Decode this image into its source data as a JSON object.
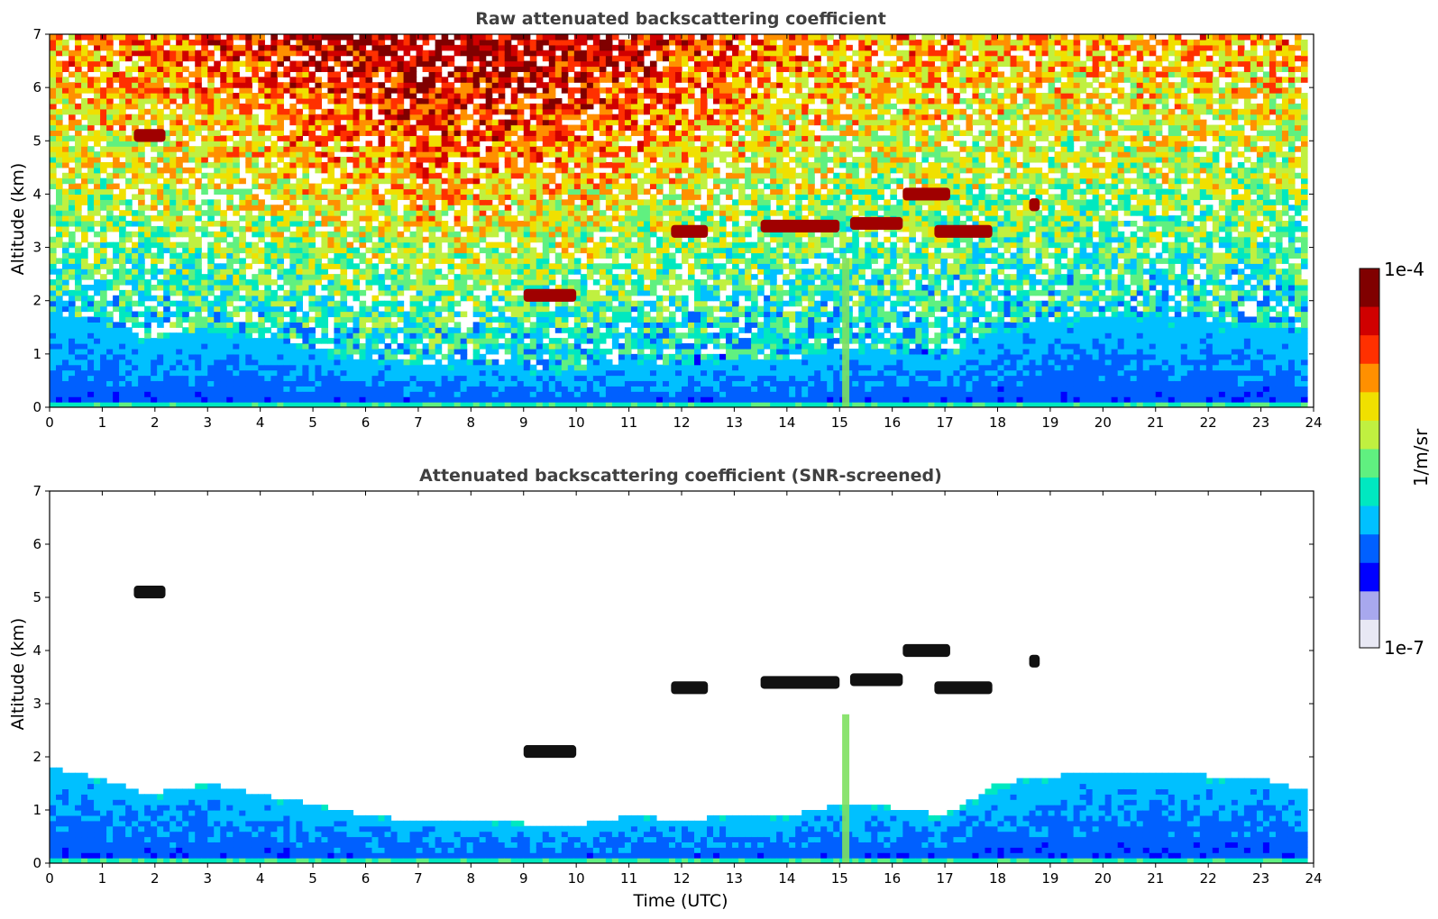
{
  "chart_data": [
    {
      "type": "heatmap",
      "title": "Raw attenuated backscattering coefficient",
      "xlabel": "",
      "ylabel": "Altitude (km)",
      "xlim": [
        0,
        24
      ],
      "ylim": [
        0,
        7
      ],
      "xticks": [
        "0",
        "1",
        "2",
        "3",
        "4",
        "5",
        "6",
        "7",
        "8",
        "9",
        "10",
        "11",
        "12",
        "13",
        "14",
        "15",
        "16",
        "17",
        "18",
        "19",
        "20",
        "21",
        "22",
        "23",
        "24"
      ],
      "yticks": [
        "0",
        "1",
        "2",
        "3",
        "4",
        "5",
        "6",
        "7"
      ],
      "background": "noise",
      "cloud_layers": [
        {
          "t0": 1.6,
          "t1": 2.2,
          "alt": 5.1
        },
        {
          "t0": 9.0,
          "t1": 10.0,
          "alt": 2.1
        },
        {
          "t0": 11.8,
          "t1": 12.5,
          "alt": 3.3
        },
        {
          "t0": 13.5,
          "t1": 15.0,
          "alt": 3.4
        },
        {
          "t0": 15.2,
          "t1": 16.2,
          "alt": 3.45
        },
        {
          "t0": 16.2,
          "t1": 17.1,
          "alt": 4.0
        },
        {
          "t0": 16.8,
          "t1": 17.9,
          "alt": 3.3
        },
        {
          "t0": 18.6,
          "t1": 18.8,
          "alt": 3.8
        }
      ],
      "boundary_layer_top_km": [
        [
          0,
          1.8
        ],
        [
          1,
          1.6
        ],
        [
          1.8,
          1.3
        ],
        [
          3,
          1.5
        ],
        [
          4,
          1.3
        ],
        [
          5,
          1.1
        ],
        [
          6,
          0.9
        ],
        [
          7,
          0.8
        ],
        [
          8,
          0.8
        ],
        [
          9,
          0.75
        ],
        [
          10,
          0.7
        ],
        [
          11,
          0.9
        ],
        [
          12,
          0.8
        ],
        [
          13,
          0.9
        ],
        [
          14,
          0.9
        ],
        [
          15,
          1.1
        ],
        [
          16,
          1.05
        ],
        [
          17,
          0.9
        ],
        [
          18,
          1.5
        ],
        [
          20,
          1.75
        ],
        [
          21,
          1.7
        ],
        [
          22,
          1.65
        ],
        [
          23,
          1.6
        ],
        [
          24,
          1.3
        ]
      ],
      "rain_column": {
        "t": 15.1,
        "top_km": 2.8
      }
    },
    {
      "type": "heatmap",
      "title": "Attenuated backscattering coefficient (SNR-screened)",
      "xlabel": "Time (UTC)",
      "ylabel": "Altitude (km)",
      "xlim": [
        0,
        24
      ],
      "ylim": [
        0,
        7
      ],
      "xticks": [
        "0",
        "1",
        "2",
        "3",
        "4",
        "5",
        "6",
        "7",
        "8",
        "9",
        "10",
        "11",
        "12",
        "13",
        "14",
        "15",
        "16",
        "17",
        "18",
        "19",
        "20",
        "21",
        "22",
        "23",
        "24"
      ],
      "yticks": [
        "0",
        "1",
        "2",
        "3",
        "4",
        "5",
        "6",
        "7"
      ],
      "background": "screened",
      "cloud_layers": [
        {
          "t0": 1.6,
          "t1": 2.2,
          "alt": 5.1
        },
        {
          "t0": 9.0,
          "t1": 10.0,
          "alt": 2.1
        },
        {
          "t0": 11.8,
          "t1": 12.5,
          "alt": 3.3
        },
        {
          "t0": 13.5,
          "t1": 15.0,
          "alt": 3.4
        },
        {
          "t0": 15.2,
          "t1": 16.2,
          "alt": 3.45
        },
        {
          "t0": 16.2,
          "t1": 17.1,
          "alt": 4.0
        },
        {
          "t0": 16.8,
          "t1": 17.9,
          "alt": 3.3
        },
        {
          "t0": 18.6,
          "t1": 18.8,
          "alt": 3.8
        }
      ],
      "boundary_layer_top_km": [
        [
          0,
          1.8
        ],
        [
          1,
          1.6
        ],
        [
          1.8,
          1.3
        ],
        [
          3,
          1.5
        ],
        [
          4,
          1.3
        ],
        [
          5,
          1.1
        ],
        [
          6,
          0.9
        ],
        [
          7,
          0.8
        ],
        [
          8,
          0.8
        ],
        [
          9,
          0.75
        ],
        [
          10,
          0.7
        ],
        [
          11,
          0.9
        ],
        [
          12,
          0.8
        ],
        [
          13,
          0.9
        ],
        [
          14,
          0.9
        ],
        [
          15,
          1.1
        ],
        [
          16,
          1.05
        ],
        [
          17,
          0.9
        ],
        [
          18,
          1.5
        ],
        [
          20,
          1.75
        ],
        [
          21,
          1.7
        ],
        [
          22,
          1.65
        ],
        [
          23,
          1.6
        ],
        [
          24,
          1.3
        ]
      ],
      "rain_column": {
        "t": 15.1,
        "top_km": 2.8
      }
    }
  ],
  "colorbar": {
    "label": "1/m/sr",
    "max_label": "1e-4",
    "min_label": "1e-7",
    "scale": "log",
    "colormap": [
      "#e8e8f4",
      "#a8a8ee",
      "#0000ff",
      "#0060ff",
      "#00c0ff",
      "#00e8c0",
      "#60f080",
      "#c0f040",
      "#f0e000",
      "#ff9000",
      "#ff3000",
      "#d00000",
      "#800000"
    ]
  }
}
